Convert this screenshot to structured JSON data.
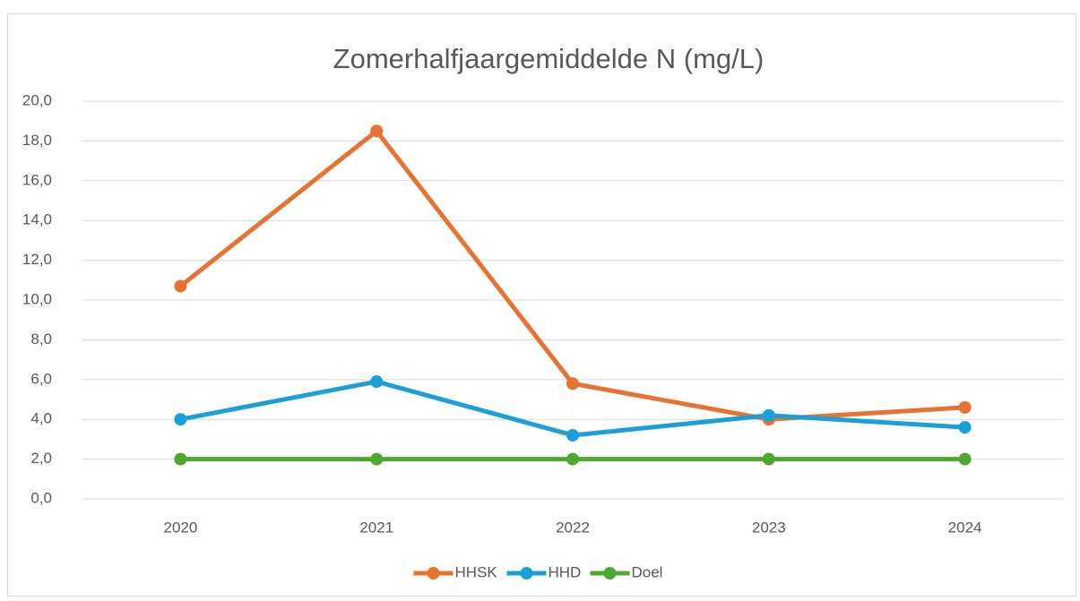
{
  "chart_data": {
    "type": "line",
    "title": "Zomerhalfjaargemiddelde N (mg/L)",
    "categories": [
      "2020",
      "2021",
      "2022",
      "2023",
      "2024"
    ],
    "series": [
      {
        "name": "HHSK",
        "color": "#e97132",
        "values": [
          10.7,
          18.5,
          5.8,
          4.0,
          4.6
        ]
      },
      {
        "name": "HHD",
        "color": "#1a9fd8",
        "values": [
          4.0,
          5.9,
          3.2,
          4.2,
          3.6
        ]
      },
      {
        "name": "Doel",
        "color": "#4ea72e",
        "values": [
          2.0,
          2.0,
          2.0,
          2.0,
          2.0
        ]
      }
    ],
    "ylim": [
      0,
      20
    ],
    "yticks": [
      {
        "value": 0,
        "label": "0,0"
      },
      {
        "value": 2,
        "label": "2,0"
      },
      {
        "value": 4,
        "label": "4,0"
      },
      {
        "value": 6,
        "label": "6,0"
      },
      {
        "value": 8,
        "label": "8,0"
      },
      {
        "value": 10,
        "label": "10,0"
      },
      {
        "value": 12,
        "label": "12,0"
      },
      {
        "value": 14,
        "label": "14,0"
      },
      {
        "value": 16,
        "label": "16,0"
      },
      {
        "value": 18,
        "label": "18,0"
      },
      {
        "value": 20,
        "label": "20,0"
      }
    ],
    "grid": true,
    "legend": "bottom"
  }
}
